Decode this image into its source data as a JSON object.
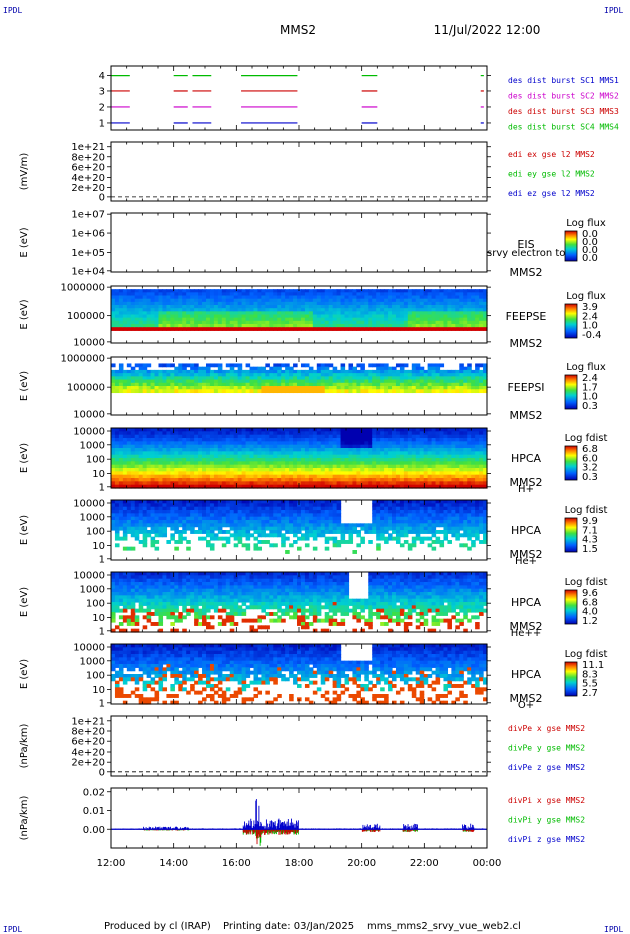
{
  "header": {
    "corner_mark": "IPDL",
    "title": "MMS2",
    "datetime": "11/Jul/2022 12:00"
  },
  "footer": {
    "produced_by": "Produced by cl (IRAP)",
    "printing_date": "Printing date: 03/Jan/2025",
    "filename": "mms_mms2_srvy_vue_web2.cl"
  },
  "time_axis": [
    "12:00",
    "14:00",
    "16:00",
    "18:00",
    "20:00",
    "22:00",
    "00:00"
  ],
  "colors": {
    "mms1": "#0000cc",
    "mms2": "#cc00cc",
    "mms3": "#cc0000",
    "mms4": "#00bb00",
    "x": "#cc0000",
    "y": "#00bb00",
    "z": "#0000cc"
  },
  "chart_data": [
    {
      "type": "line",
      "name": "burst",
      "yticks": [
        "4",
        "3",
        "2",
        "1"
      ],
      "legend": [
        "des dist burst SC1 MMS1",
        "des dist burst SC2 MMS2",
        "des dist burst SC3 MMS3",
        "des dist burst SC4 MMS4"
      ],
      "burst_intervals_hours": [
        [
          12.0,
          12.6
        ],
        [
          14.0,
          14.45
        ],
        [
          14.6,
          15.2
        ],
        [
          16.15,
          17.95
        ],
        [
          20.0,
          20.5
        ],
        [
          23.8,
          23.9
        ]
      ]
    },
    {
      "type": "line",
      "name": "edi",
      "ylabel": "(mV/m)",
      "yticks": [
        "1e+21",
        "8e+20",
        "6e+20",
        "4e+20",
        "2e+20",
        "0"
      ],
      "legend": [
        "edi ex gse l2 MMS2",
        "edi ey gse l2 MMS2",
        "edi ez gse l2 MMS2"
      ]
    },
    {
      "type": "heatmap",
      "name": "eis",
      "ylabel": "E (eV)",
      "yticks": [
        "1e+07",
        "1e+06",
        "1e+05",
        "1e+04"
      ],
      "instrument": "EIS",
      "overlay_label": "srvy electron to",
      "spacecraft": "MMS2",
      "colorbar_title": "Log flux",
      "colorbar_ticks": [
        "0.0",
        "0.0",
        "0.0",
        "0.0"
      ]
    },
    {
      "type": "heatmap",
      "name": "feepse",
      "ylabel": "E (eV)",
      "yticks": [
        "1000000",
        "100000",
        "10000"
      ],
      "instrument": "FEEPSE",
      "spacecraft": "MMS2",
      "colorbar_title": "Log flux",
      "colorbar_ticks": [
        "3.9",
        "2.4",
        "1.0",
        "-0.4"
      ]
    },
    {
      "type": "heatmap",
      "name": "feepsi",
      "ylabel": "E (eV)",
      "yticks": [
        "1000000",
        "100000",
        "10000"
      ],
      "instrument": "FEEPSI",
      "spacecraft": "MMS2",
      "colorbar_title": "Log flux",
      "colorbar_ticks": [
        "2.4",
        "1.7",
        "1.0",
        "0.3"
      ]
    },
    {
      "type": "heatmap",
      "name": "hpca-h",
      "ylabel": "E (eV)",
      "yticks": [
        "10000",
        "1000",
        "100",
        "10",
        "1"
      ],
      "instrument": "HPCA",
      "spacecraft": "MMS2",
      "species": "H+",
      "colorbar_title": "Log fdist",
      "colorbar_ticks": [
        "6.8",
        "6.0",
        "3.2",
        "0.3"
      ]
    },
    {
      "type": "heatmap",
      "name": "hpca-he",
      "ylabel": "E (eV)",
      "yticks": [
        "10000",
        "1000",
        "100",
        "10",
        "1"
      ],
      "instrument": "HPCA",
      "spacecraft": "MMS2",
      "species": "He+",
      "colorbar_title": "Log fdist",
      "colorbar_ticks": [
        "9.9",
        "7.1",
        "4.3",
        "1.5"
      ]
    },
    {
      "type": "heatmap",
      "name": "hpca-hepp",
      "ylabel": "E (eV)",
      "yticks": [
        "10000",
        "1000",
        "100",
        "10",
        "1"
      ],
      "instrument": "HPCA",
      "spacecraft": "MMS2",
      "species": "He++",
      "colorbar_title": "Log fdist",
      "colorbar_ticks": [
        "9.6",
        "6.8",
        "4.0",
        "1.2"
      ]
    },
    {
      "type": "heatmap",
      "name": "hpca-o",
      "ylabel": "E (eV)",
      "yticks": [
        "10000",
        "1000",
        "100",
        "10",
        "1"
      ],
      "instrument": "HPCA",
      "spacecraft": "MMS2",
      "species": "O+",
      "colorbar_title": "Log fdist",
      "colorbar_ticks": [
        "11.1",
        "8.3",
        "5.5",
        "2.7"
      ]
    },
    {
      "type": "line",
      "name": "divpe",
      "ylabel": "(nPa/km)",
      "yticks": [
        "1e+21",
        "8e+20",
        "6e+20",
        "4e+20",
        "2e+20",
        "0"
      ],
      "legend": [
        "divPe x gse MMS2",
        "divPe y gse MMS2",
        "divPe z gse MMS2"
      ]
    },
    {
      "type": "line",
      "name": "divpi",
      "ylabel": "(nPa/km)",
      "yticks": [
        "0.02",
        "0.01",
        "0.00"
      ],
      "ylim": [
        -0.01,
        0.022
      ],
      "legend": [
        "divPi x gse MMS2",
        "divPi y gse MMS2",
        "divPi z gse MMS2"
      ]
    }
  ]
}
